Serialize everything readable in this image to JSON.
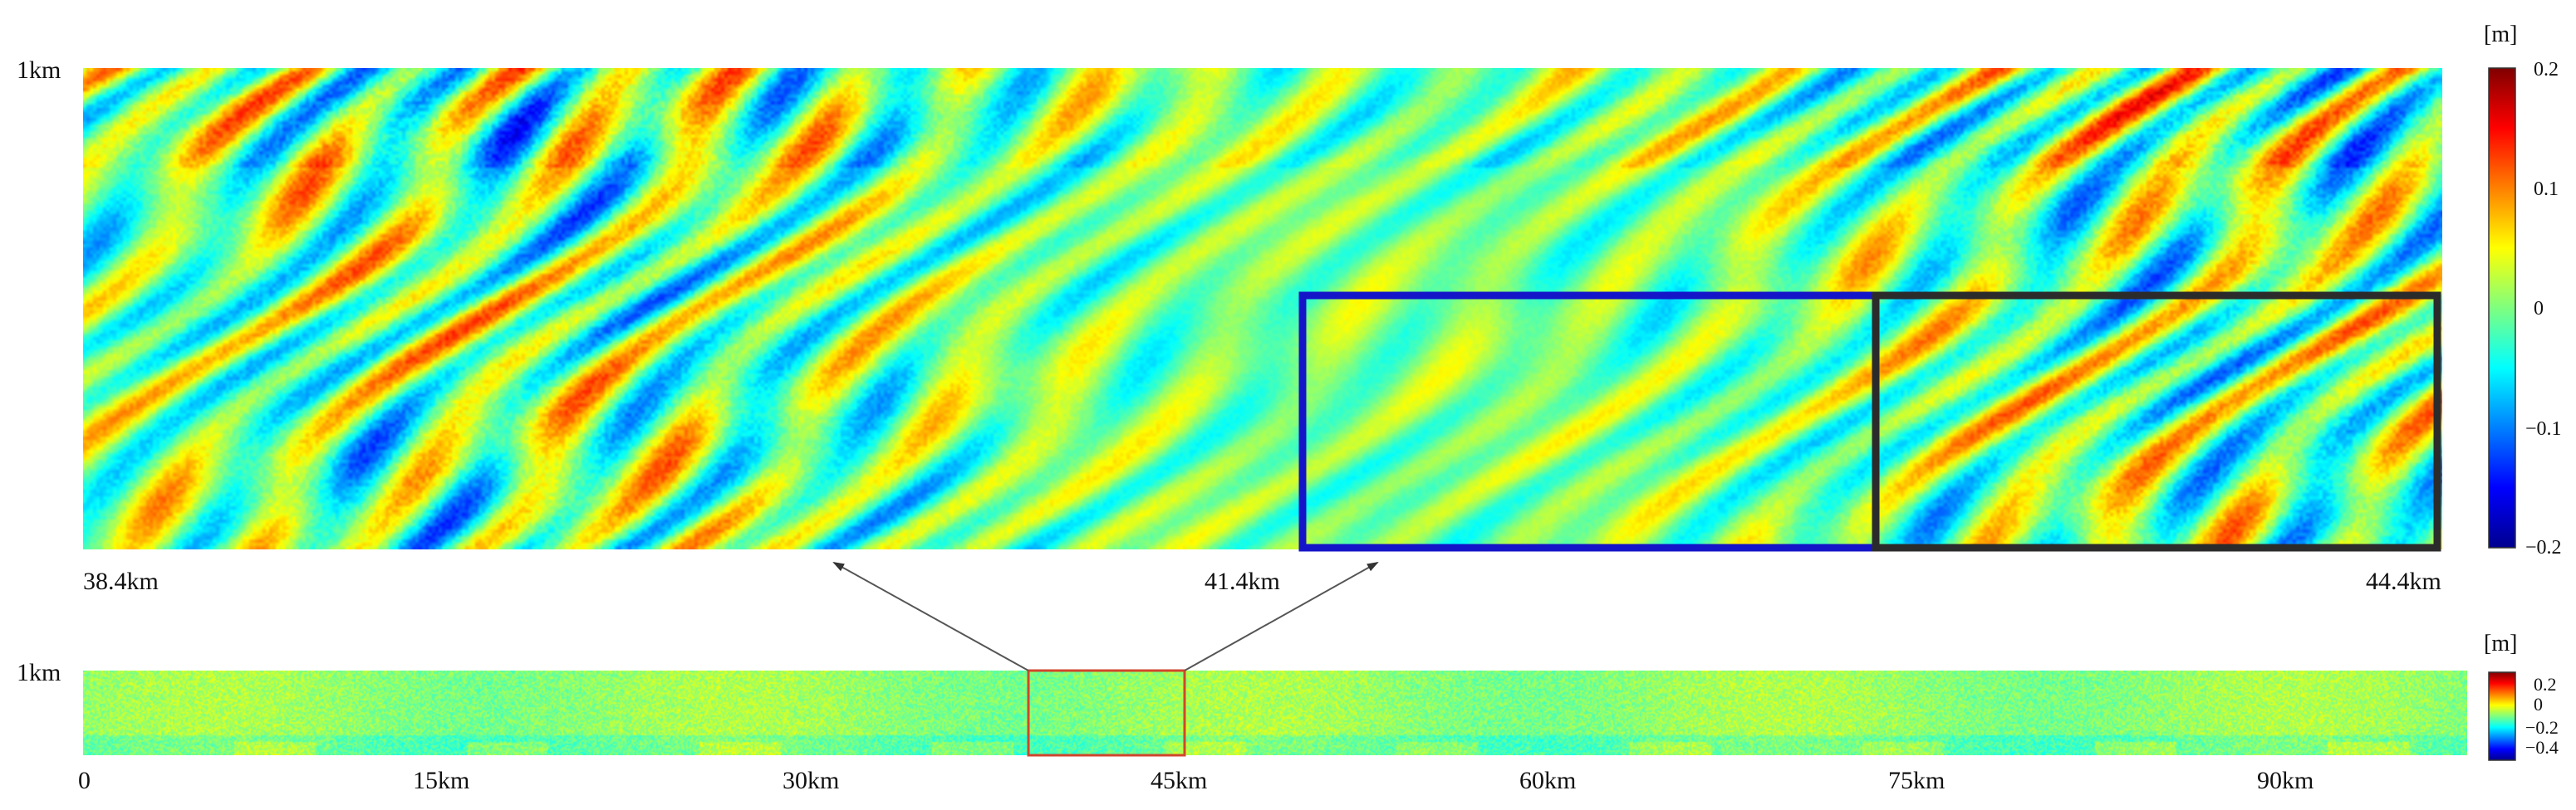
{
  "chart_data": [
    {
      "type": "heatmap",
      "panel": "zoomed-detail",
      "y_label_top": "1km",
      "x_tick_labels": [
        "38.4km",
        "41.4km",
        "44.4km"
      ],
      "x_range_km": [
        38.4,
        44.4
      ],
      "y_range_km": [
        0,
        1
      ],
      "colorbar": {
        "unit": "[m]",
        "tick_labels": [
          "0.2",
          "0.1",
          "0",
          "−0.1",
          "−0.2"
        ],
        "range": [
          -0.2,
          0.2
        ],
        "colormap": "jet"
      },
      "highlight_boxes": [
        {
          "color": "#1414c8",
          "x_km": [
            41.4,
            42.9
          ]
        },
        {
          "color": "#2b2b2b",
          "x_km": [
            42.9,
            44.4
          ]
        }
      ]
    },
    {
      "type": "heatmap",
      "panel": "full-overview",
      "y_label_top": "1km",
      "x_tick_labels": [
        "0",
        "15km",
        "30km",
        "45km",
        "60km",
        "75km",
        "90km"
      ],
      "x_range_km": [
        0,
        97
      ],
      "y_range_km": [
        0,
        1
      ],
      "colorbar": {
        "unit": "[m]",
        "tick_labels": [
          "0.2",
          "0",
          "−0.2",
          "−0.4"
        ],
        "range": [
          -0.4,
          0.3
        ],
        "colormap": "jet"
      },
      "highlight_span_km": [
        38.4,
        44.4
      ],
      "highlight_color": "#d2452c"
    }
  ]
}
